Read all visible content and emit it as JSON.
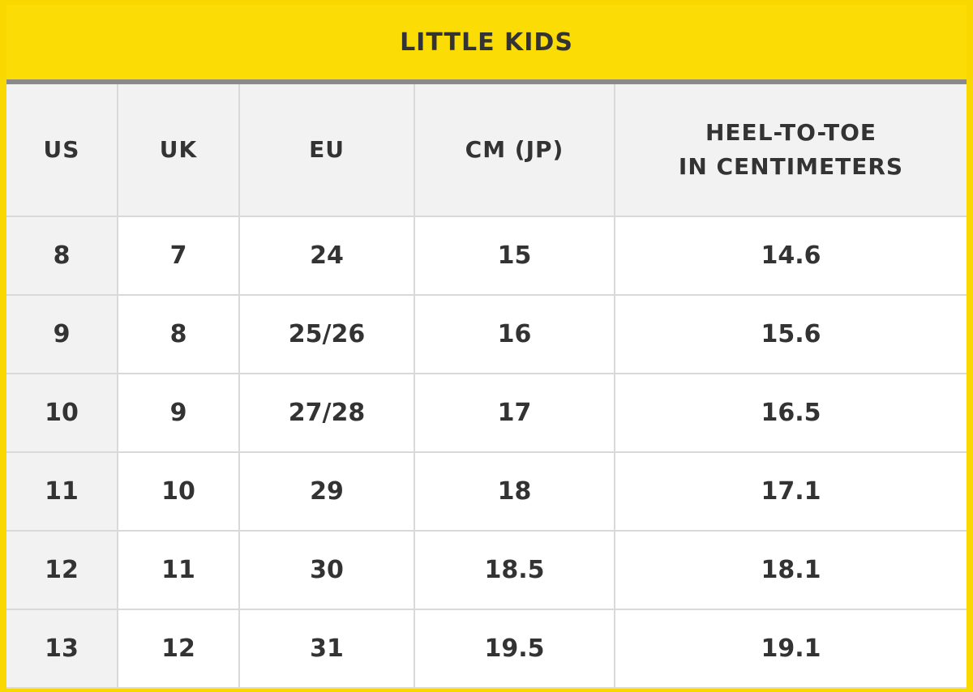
{
  "title": "LITTLE KIDS",
  "columns": {
    "us": "US",
    "uk": "UK",
    "eu": "EU",
    "cm": "CM (JP)",
    "heel_line1": "HEEL-TO-TOE",
    "heel_line2": "IN CENTIMETERS"
  },
  "rows": [
    {
      "us": "8",
      "uk": "7",
      "eu": "24",
      "cm": "15",
      "heel": "14.6"
    },
    {
      "us": "9",
      "uk": "8",
      "eu": "25/26",
      "cm": "16",
      "heel": "15.6"
    },
    {
      "us": "10",
      "uk": "9",
      "eu": "27/28",
      "cm": "17",
      "heel": "16.5"
    },
    {
      "us": "11",
      "uk": "10",
      "eu": "29",
      "cm": "18",
      "heel": "17.1"
    },
    {
      "us": "12",
      "uk": "11",
      "eu": "30",
      "cm": "18.5",
      "heel": "18.1"
    },
    {
      "us": "13",
      "uk": "12",
      "eu": "31",
      "cm": "19.5",
      "heel": "19.1"
    }
  ],
  "colors": {
    "accent_yellow": "#fcdc05",
    "rule_gray": "#8a8a8a",
    "header_bg": "#f2f2f2",
    "text": "#333333"
  }
}
